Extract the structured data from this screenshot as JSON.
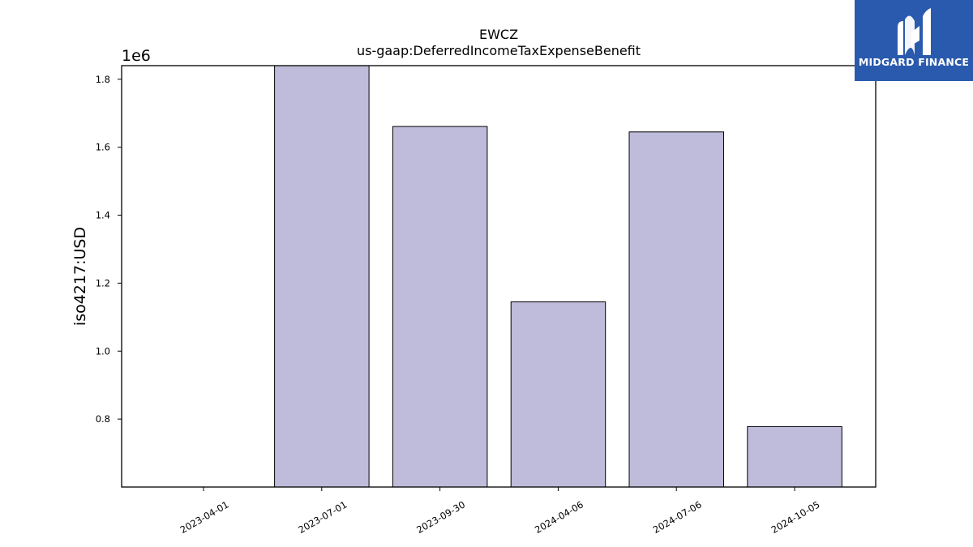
{
  "chart_data": {
    "type": "bar",
    "title": "EWCZ",
    "subtitle": "us-gaap:DeferredIncomeTaxExpenseBenefit",
    "ylabel": "iso4217:USD",
    "xlabel": "",
    "y_offset_label": "1e6",
    "categories": [
      "2023-04-01",
      "2023-07-01",
      "2023-09-30",
      "2024-04-06",
      "2024-07-06",
      "2024-10-05"
    ],
    "values": [
      null,
      1840000,
      1661000,
      1145000,
      1645000,
      778000
    ],
    "ylim": [
      0.6,
      1.84
    ],
    "yticks": [
      0.8,
      1.0,
      1.2,
      1.4,
      1.6,
      1.8
    ],
    "ytick_labels": [
      "0.8",
      "1.0",
      "1.2",
      "1.4",
      "1.6",
      "1.8"
    ],
    "grid": false,
    "bar_color": "#bebcda",
    "edge_color": "#000000"
  },
  "logo": {
    "text": "MIDGARD FINANCE",
    "color": "#2a5aad"
  }
}
